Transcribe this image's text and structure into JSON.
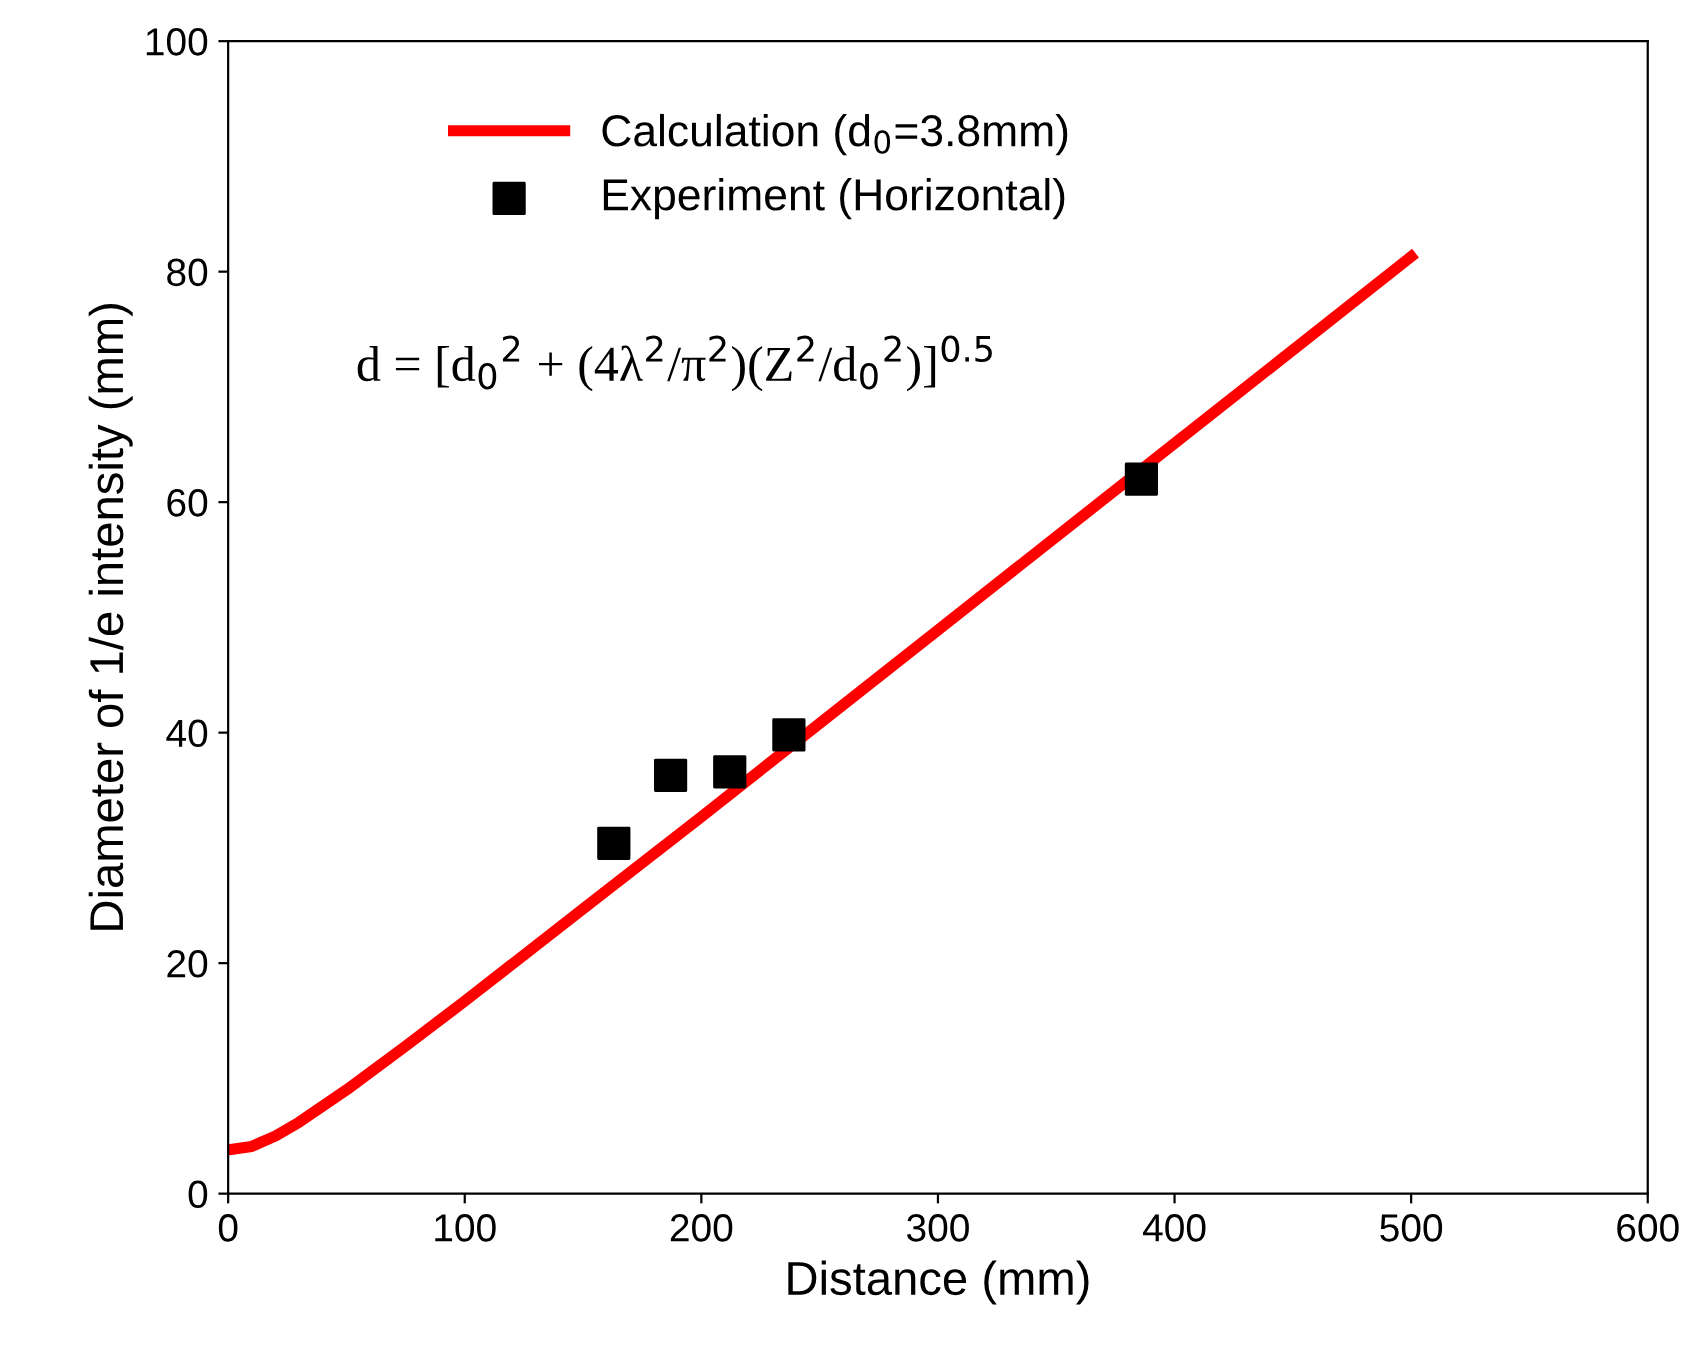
{
  "chart_data": {
    "type": "line",
    "xlabel": "Distance (mm)",
    "ylabel": "Diameter of 1/e intensity (mm)",
    "xlim": [
      0,
      600
    ],
    "ylim": [
      0,
      100
    ],
    "xticks": [
      0,
      100,
      200,
      300,
      400,
      500,
      600
    ],
    "yticks": [
      0,
      20,
      40,
      60,
      80,
      100
    ],
    "grid": false,
    "legend": "top left",
    "annotations": [
      "d = [d$_{0}$$^{2}$ + (4λ$^{2}$/π$^{2}$)(Z$^{2}$/d$_{0}$$^{2}$)]$^{0.5}$"
    ],
    "series": [
      {
        "name": "Calculation (d$_{0}$=3.8mm)",
        "color": "#ff0000",
        "marker": "none",
        "x": [
          0,
          10,
          20,
          30,
          50,
          75,
          100,
          150,
          200,
          300,
          400,
          500
        ],
        "values": [
          3.8,
          4.1,
          5.0,
          6.2,
          9.0,
          12.8,
          16.7,
          24.7,
          32.7,
          48.9,
          65.1,
          81.3
        ]
      },
      {
        "name": "Experiment (Horizontal)",
        "type": "scatter",
        "color": "#000000",
        "marker": "square",
        "x": [
          163,
          187,
          212,
          237,
          386
        ],
        "values": [
          30.4,
          36.3,
          36.6,
          39.8,
          62.0
        ]
      }
    ]
  }
}
